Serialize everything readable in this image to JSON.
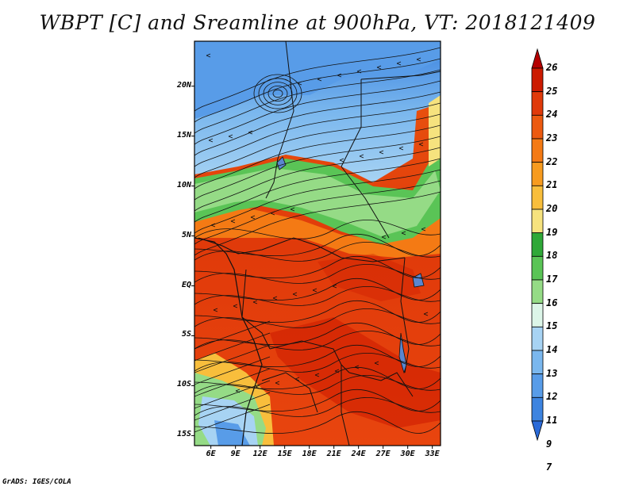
{
  "title": "WBPT [C] and Sreamline at 900hPa, VT: 2018121409",
  "credit": "GrADS: IGES/COLA",
  "lat_labels": [
    "20N",
    "15N",
    "10N",
    "5N",
    "EQ",
    "5S",
    "10S",
    "15S"
  ],
  "lat_values": [
    20,
    15,
    10,
    5,
    0,
    -5,
    -10,
    -15
  ],
  "lon_labels": [
    "6E",
    "9E",
    "12E",
    "15E",
    "18E",
    "21E",
    "24E",
    "27E",
    "30E",
    "33E"
  ],
  "lon_values": [
    6,
    9,
    12,
    15,
    18,
    21,
    24,
    27,
    30,
    33
  ],
  "lon_range": [
    4,
    34
  ],
  "lat_range": [
    -16,
    24.5
  ],
  "colorbar": {
    "labels": [
      "26",
      "25",
      "24",
      "23",
      "22",
      "21",
      "20",
      "19",
      "18",
      "17",
      "16",
      "15",
      "14",
      "13",
      "12",
      "11",
      "9",
      "7"
    ],
    "colors": [
      "#b50000",
      "#cc1a00",
      "#e03a0a",
      "#ec5a10",
      "#f47a14",
      "#f79b1f",
      "#f8be3c",
      "#f6e27e",
      "#2fa838",
      "#5ac456",
      "#95db86",
      "#dcf5e8",
      "#a7d3f3",
      "#7ab7ee",
      "#589ce8",
      "#3d84e0",
      "#2a6ad8"
    ]
  },
  "map": {
    "variable": "Wet-bulb potential temperature (C)",
    "level": "900hPa",
    "valid_time": "2018121409"
  }
}
